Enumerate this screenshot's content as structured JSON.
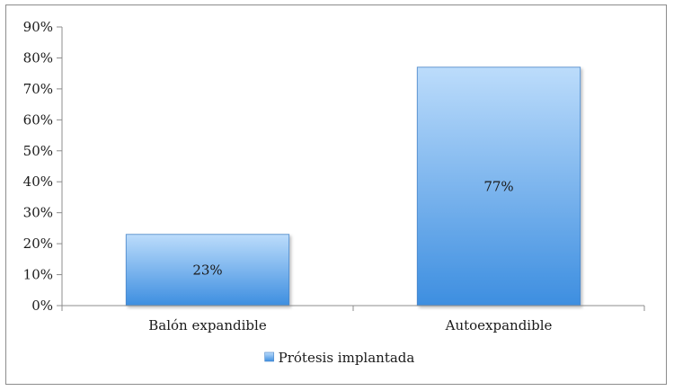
{
  "chart_data": {
    "type": "bar",
    "categories": [
      "Balón expandible",
      "Autoexpandible"
    ],
    "series": [
      {
        "name": "Prótesis implantada",
        "values": [
          23,
          77
        ],
        "data_labels": [
          "23%",
          "77%"
        ]
      }
    ],
    "title": "",
    "xlabel": "",
    "ylabel": "",
    "ylim": [
      0,
      90
    ],
    "yticks": [
      0,
      10,
      20,
      30,
      40,
      50,
      60,
      70,
      80,
      90
    ],
    "ytick_labels": [
      "0%",
      "10%",
      "20%",
      "30%",
      "40%",
      "50%",
      "60%",
      "70%",
      "80%",
      "90%"
    ],
    "grid": false,
    "legend": {
      "position": "bottom",
      "entries": [
        "Prótesis implantada"
      ]
    },
    "colors": {
      "bar_top": "#bcdcfb",
      "bar_bottom": "#3d8ee0",
      "bar_edge": "#4a86c8",
      "axis": "#8c8c8c"
    }
  }
}
